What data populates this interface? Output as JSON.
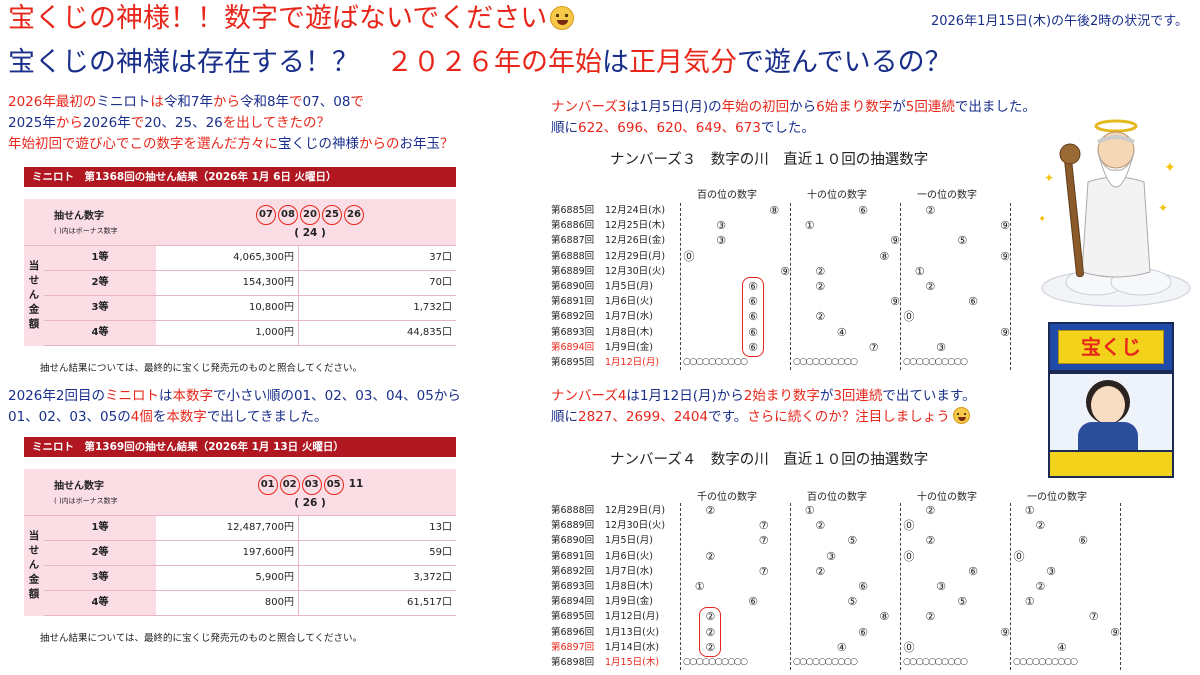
{
  "header": {
    "title1": "宝くじの神様！！数字で遊ばないでください",
    "status": "2026年1月15日(木)の午後2時の状況です。",
    "title2": [
      {
        "t": "宝くじの神様は存在する！？　",
        "c": "b"
      },
      {
        "t": "２０２６年の年始",
        "c": "r"
      },
      {
        "t": "は",
        "c": "b"
      },
      {
        "t": "正月気分",
        "c": "r"
      },
      {
        "t": "で遊んでいるの？",
        "c": "b"
      }
    ]
  },
  "left_text1": [
    [
      {
        "t": "2026年最初の",
        "c": "r"
      },
      {
        "t": "ミニロト",
        "c": "b"
      },
      {
        "t": "は",
        "c": "r"
      },
      {
        "t": "令和7年",
        "c": "b"
      },
      {
        "t": "から",
        "c": "r"
      },
      {
        "t": "令和8年",
        "c": "b"
      },
      {
        "t": "で",
        "c": "r"
      },
      {
        "t": "07、08",
        "c": "b"
      },
      {
        "t": "で",
        "c": "r"
      }
    ],
    [
      {
        "t": "2025年",
        "c": "b"
      },
      {
        "t": "から",
        "c": "r"
      },
      {
        "t": "2026年",
        "c": "b"
      },
      {
        "t": "で",
        "c": "r"
      },
      {
        "t": "20、25、26",
        "c": "b"
      },
      {
        "t": "を出してきたの？",
        "c": "r"
      }
    ],
    [
      {
        "t": "年始初回で遊び心でこの数字を選んだ方々に",
        "c": "r"
      },
      {
        "t": "宝くじの神様",
        "c": "b"
      },
      {
        "t": "からの",
        "c": "r"
      },
      {
        "t": "お年玉",
        "c": "b"
      },
      {
        "t": "？",
        "c": "r"
      }
    ]
  ],
  "left_text2": [
    [
      {
        "t": "2026年2回目の",
        "c": "b"
      },
      {
        "t": "ミニロト",
        "c": "r"
      },
      {
        "t": "は",
        "c": "b"
      },
      {
        "t": "本数字",
        "c": "r"
      },
      {
        "t": "で小さい順の01、02、03、04、05から",
        "c": "b"
      }
    ],
    [
      {
        "t": "01、02、03、05",
        "c": "b"
      },
      {
        "t": "の",
        "c": "b"
      },
      {
        "t": "4個",
        "c": "r"
      },
      {
        "t": "を",
        "c": "b"
      },
      {
        "t": "本数字",
        "c": "r"
      },
      {
        "t": "で出してきました。",
        "c": "b"
      }
    ]
  ],
  "mini_tables": [
    {
      "header": "ミニロト　第1368回の抽せん結果（2026年 1月 6日 火曜日）",
      "num_label": "抽せん数字",
      "num_sub": "( )内はボーナス数字",
      "numbers": [
        "07",
        "08",
        "20",
        "25",
        "26"
      ],
      "bonus": "( 24 )",
      "extra": "",
      "side": "当せん金額",
      "rows": [
        {
          "grade": "1等",
          "amount": "4,065,300円",
          "winners": "37口"
        },
        {
          "grade": "2等",
          "amount": "154,300円",
          "winners": "70口"
        },
        {
          "grade": "3等",
          "amount": "10,800円",
          "winners": "1,732口"
        },
        {
          "grade": "4等",
          "amount": "1,000円",
          "winners": "44,835口"
        }
      ],
      "note": "抽せん結果については、最終的に宝くじ発売元のものと照合してください。"
    },
    {
      "header": "ミニロト　第1369回の抽せん結果（2026年 1月 13日 火曜日）",
      "num_label": "抽せん数字",
      "num_sub": "( )内はボーナス数字",
      "numbers": [
        "01",
        "02",
        "03",
        "05"
      ],
      "bonus": "( 26 )",
      "extra": "11",
      "side": "当せん金額",
      "rows": [
        {
          "grade": "1等",
          "amount": "12,487,700円",
          "winners": "13口"
        },
        {
          "grade": "2等",
          "amount": "197,600円",
          "winners": "59口"
        },
        {
          "grade": "3等",
          "amount": "5,900円",
          "winners": "3,372口"
        },
        {
          "grade": "4等",
          "amount": "800円",
          "winners": "61,517口"
        }
      ],
      "note": "抽せん結果については、最終的に宝くじ発売元のものと照合してください。"
    }
  ],
  "n3_text": [
    [
      {
        "t": "ナンバーズ3",
        "c": "r"
      },
      {
        "t": "は",
        "c": "b"
      },
      {
        "t": "1月5日(月)",
        "c": "b"
      },
      {
        "t": "の",
        "c": "b"
      },
      {
        "t": "年始の初回",
        "c": "r"
      },
      {
        "t": "から",
        "c": "b"
      },
      {
        "t": "6始まり数字",
        "c": "r"
      },
      {
        "t": "が",
        "c": "b"
      },
      {
        "t": "5回連続",
        "c": "r"
      },
      {
        "t": "で出ました。",
        "c": "b"
      }
    ],
    [
      {
        "t": "順に",
        "c": "b"
      },
      {
        "t": "622、696、620、649、673",
        "c": "r"
      },
      {
        "t": "でした。",
        "c": "b"
      }
    ]
  ],
  "n4_text": [
    [
      {
        "t": "ナンバーズ4",
        "c": "r"
      },
      {
        "t": "は",
        "c": "b"
      },
      {
        "t": "1月12日(月)",
        "c": "b"
      },
      {
        "t": "から",
        "c": "b"
      },
      {
        "t": "2始まり数字",
        "c": "r"
      },
      {
        "t": "が",
        "c": "b"
      },
      {
        "t": "3回連続",
        "c": "r"
      },
      {
        "t": "で出ています。",
        "c": "b"
      }
    ],
    [
      {
        "t": "順に",
        "c": "b"
      },
      {
        "t": "2827、2699、2404",
        "c": "r"
      },
      {
        "t": "です。",
        "c": "b"
      },
      {
        "t": "さらに続くのか？注目しましょう",
        "c": "r"
      }
    ]
  ],
  "n3_river": {
    "title": "ナンバーズ３　数字の川　直近１０回の抽選数字",
    "columns": [
      "百の位の数字",
      "十の位の数字",
      "一の位の数字"
    ],
    "rows": [
      {
        "draw": "第6885回",
        "date": "12月24日(水)",
        "digits": [
          8,
          6,
          2
        ]
      },
      {
        "draw": "第6886回",
        "date": "12月25日(木)",
        "digits": [
          3,
          1,
          9
        ]
      },
      {
        "draw": "第6887回",
        "date": "12月26日(金)",
        "digits": [
          3,
          9,
          5
        ]
      },
      {
        "draw": "第6888回",
        "date": "12月29日(月)",
        "digits": [
          0,
          8,
          9
        ]
      },
      {
        "draw": "第6889回",
        "date": "12月30日(火)",
        "digits": [
          9,
          2,
          1
        ]
      },
      {
        "draw": "第6890回",
        "date": "1月5日(月)",
        "digits": [
          6,
          2,
          2
        ]
      },
      {
        "draw": "第6891回",
        "date": "1月6日(火)",
        "digits": [
          6,
          9,
          6
        ]
      },
      {
        "draw": "第6892回",
        "date": "1月7日(水)",
        "digits": [
          6,
          2,
          0
        ]
      },
      {
        "draw": "第6893回",
        "date": "1月8日(木)",
        "digits": [
          6,
          4,
          9
        ]
      },
      {
        "draw": "第6894回",
        "date": "1月9日(金)",
        "digits": [
          6,
          7,
          3
        ],
        "latest": true
      },
      {
        "draw": "第6895回",
        "date": "1月12日(月)",
        "digits": [],
        "next": true
      }
    ],
    "circle_row": "○○○○○○○○○○",
    "highlight_note": "6"
  },
  "n4_river": {
    "title": "ナンバーズ４　数字の川　直近１０回の抽選数字",
    "columns": [
      "千の位の数字",
      "百の位の数字",
      "十の位の数字",
      "一の位の数字"
    ],
    "rows": [
      {
        "draw": "第6888回",
        "date": "12月29日(月)",
        "digits": [
          2,
          1,
          2,
          1
        ]
      },
      {
        "draw": "第6889回",
        "date": "12月30日(火)",
        "digits": [
          7,
          2,
          0,
          2
        ]
      },
      {
        "draw": "第6890回",
        "date": "1月5日(月)",
        "digits": [
          7,
          5,
          2,
          6
        ]
      },
      {
        "draw": "第6891回",
        "date": "1月6日(火)",
        "digits": [
          2,
          3,
          0,
          0
        ]
      },
      {
        "draw": "第6892回",
        "date": "1月7日(水)",
        "digits": [
          7,
          2,
          6,
          3
        ]
      },
      {
        "draw": "第6893回",
        "date": "1月8日(木)",
        "digits": [
          1,
          6,
          3,
          2
        ]
      },
      {
        "draw": "第6894回",
        "date": "1月9日(金)",
        "digits": [
          6,
          5,
          5,
          1
        ]
      },
      {
        "draw": "第6895回",
        "date": "1月12日(月)",
        "digits": [
          2,
          8,
          2,
          7
        ]
      },
      {
        "draw": "第6896回",
        "date": "1月13日(火)",
        "digits": [
          2,
          6,
          9,
          9
        ]
      },
      {
        "draw": "第6897回",
        "date": "1月14日(水)",
        "digits": [
          2,
          4,
          0,
          4
        ],
        "latest": true
      },
      {
        "draw": "第6898回",
        "date": "1月15日(木)",
        "digits": [],
        "next": true
      }
    ],
    "circle_row": "○○○○○○○○○○"
  },
  "booth": {
    "sign": "宝くじ"
  },
  "colors": {
    "red": "#e8261a",
    "blue": "#1a2f8a",
    "table_header": "#b01721",
    "table_pink": "#fbdde5"
  }
}
